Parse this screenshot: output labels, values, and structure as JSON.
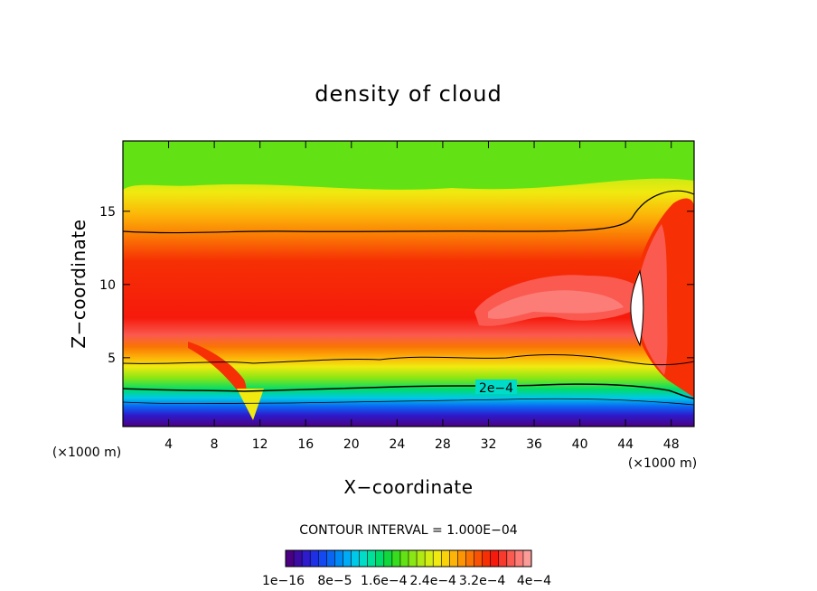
{
  "chart_data": {
    "type": "heatmap",
    "title": "density of cloud",
    "xlabel": "X−coordinate",
    "ylabel": "Z−coordinate",
    "x_unit_left": "(×1000 m)",
    "x_unit_right": "(×1000 m)",
    "xlim": [
      0,
      50
    ],
    "ylim": [
      0.3,
      19.8
    ],
    "x_ticks": [
      4,
      8,
      12,
      16,
      20,
      24,
      28,
      32,
      36,
      40,
      44,
      48
    ],
    "y_ticks": [
      5,
      10,
      15
    ],
    "contour_label": "2e−4",
    "contour_interval_text": "CONTOUR INTERVAL = 1.000E−04",
    "colorbar": {
      "labels": [
        "1e−16",
        "8e−5",
        "1.6e−4",
        "2.4e−4",
        "3.2e−4",
        "4e−4"
      ],
      "label_values": [
        0,
        8e-05,
        0.00016,
        0.00024,
        0.00032,
        0.0004
      ],
      "min": 0,
      "max": 0.0004,
      "colors": [
        "#4b0082",
        "#3a0ca3",
        "#2d1bcc",
        "#1f2fe6",
        "#1448f0",
        "#0a66f2",
        "#0088f5",
        "#00aaf5",
        "#00c8e8",
        "#00dcc8",
        "#00e09a",
        "#00dc6a",
        "#10d83c",
        "#38dc1e",
        "#62e214",
        "#8ae614",
        "#b0ea14",
        "#d4ee14",
        "#f0ea10",
        "#fad20c",
        "#fcb408",
        "#fc9404",
        "#fa7404",
        "#f85204",
        "#f63004",
        "#f61a0c",
        "#f83a2c",
        "#fa5a50",
        "#fc7c78",
        "#fc9c98"
      ]
    },
    "series": [
      {
        "name": "",
        "type": "contour",
        "level": 0.0002,
        "profile_x": [
          0,
          10,
          14,
          20,
          30,
          40,
          46,
          50
        ],
        "profile_z": [
          2.9,
          2.7,
          2.7,
          2.9,
          3.0,
          3.1,
          3.0,
          2.2
        ]
      },
      {
        "name": "",
        "type": "contour",
        "level": 0.0001,
        "profile_x": [
          0,
          8,
          12,
          20,
          30,
          40,
          50
        ],
        "profile_z": [
          13.8,
          13.6,
          13.7,
          13.8,
          13.8,
          13.8,
          16.3
        ]
      }
    ],
    "grid": false,
    "legend": "colorbar-bottom"
  }
}
